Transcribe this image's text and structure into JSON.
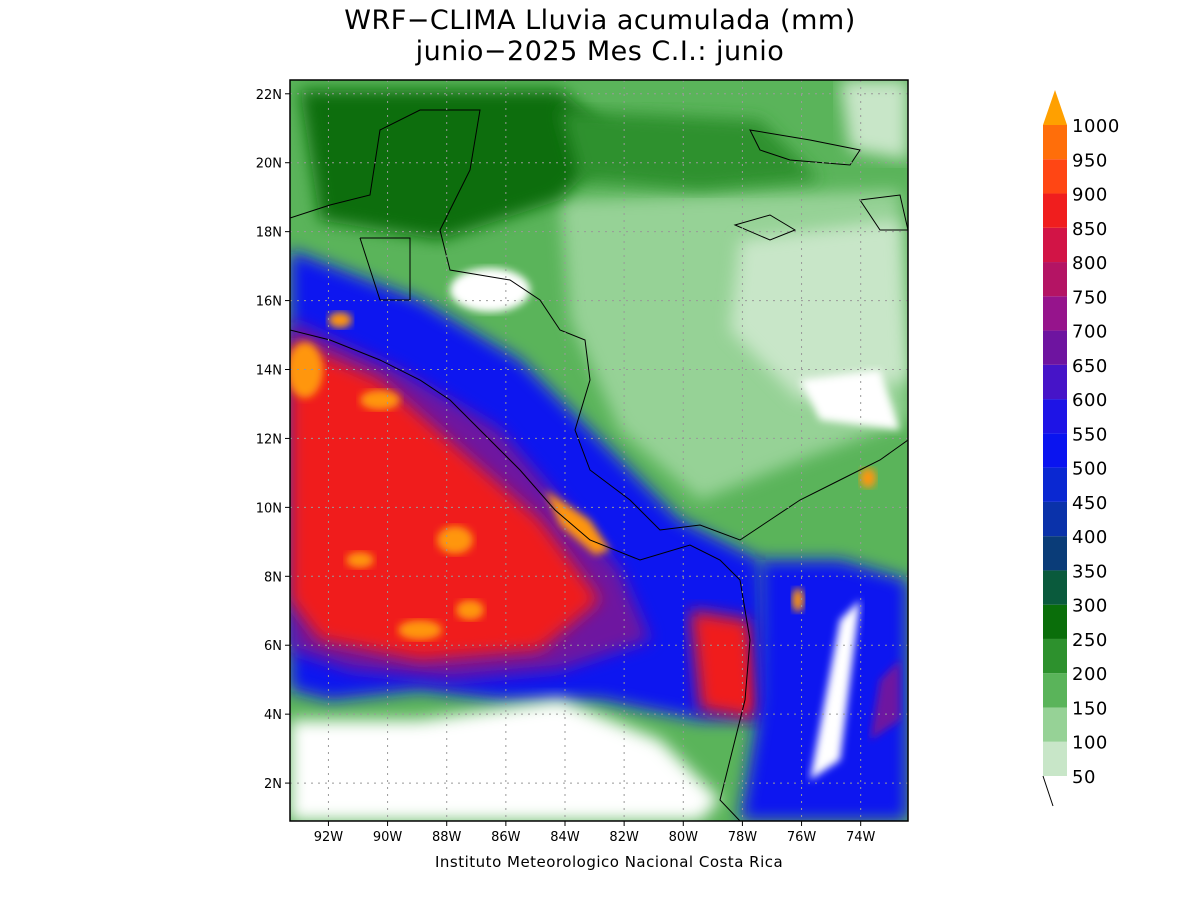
{
  "title_line1": "WRF−CLIMA Lluvia acumulada (mm)",
  "title_line2": "junio−2025 Mes C.I.: junio",
  "footer": "Instituto Meteorologico Nacional Costa Rica",
  "lat_labels": [
    "22N",
    "20N",
    "18N",
    "16N",
    "14N",
    "12N",
    "10N",
    "8N",
    "6N",
    "4N",
    "2N"
  ],
  "lat_values": [
    22,
    20,
    18,
    16,
    14,
    12,
    10,
    8,
    6,
    4,
    2
  ],
  "lon_labels": [
    "92W",
    "90W",
    "88W",
    "86W",
    "84W",
    "82W",
    "80W",
    "78W",
    "76W",
    "74W"
  ],
  "lon_values": [
    -92,
    -90,
    -88,
    -86,
    -84,
    -82,
    -80,
    -78,
    -76,
    -74
  ],
  "lat_range": [
    0.9,
    22.4
  ],
  "lon_range": [
    -93.3,
    -72.4
  ],
  "grid": true,
  "legend": {
    "labels": [
      "50",
      "100",
      "150",
      "200",
      "250",
      "300",
      "350",
      "400",
      "450",
      "500",
      "550",
      "600",
      "650",
      "700",
      "750",
      "800",
      "850",
      "900",
      "950",
      "1000"
    ],
    "colors": [
      "#c8e6c8",
      "#96d296",
      "#5ab45a",
      "#2d912d",
      "#0a6e0a",
      "#0a5a3c",
      "#0a3c78",
      "#0a32aa",
      "#0a28d2",
      "#0a14f0",
      "#1e14e6",
      "#4614c8",
      "#6e14a0",
      "#96148c",
      "#b41464",
      "#d21446",
      "#f01e1e",
      "#ff4614",
      "#ff6e0a",
      "#ff960a"
    ],
    "top_arrow_color": "#ffa000"
  }
}
